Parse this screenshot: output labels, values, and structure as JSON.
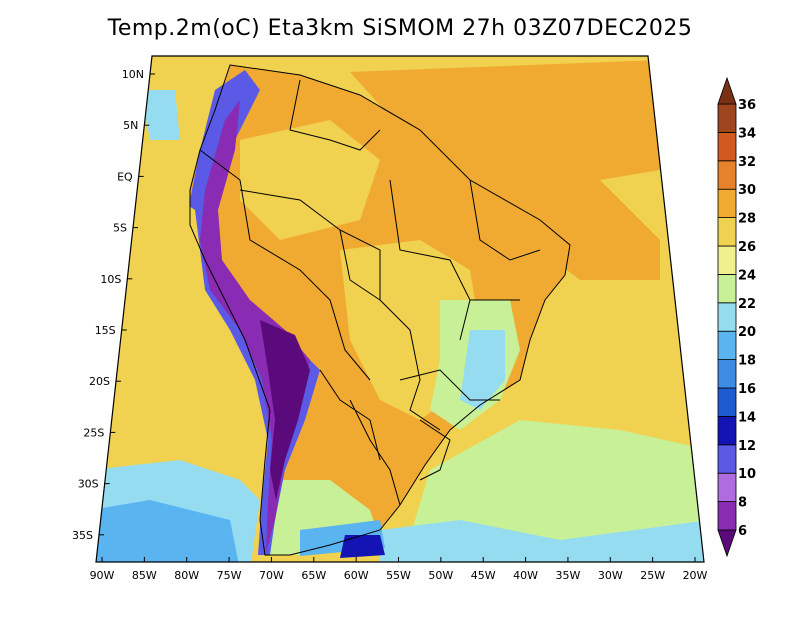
{
  "title": "Temp.2m(oC) Eta3km SiSMOM 27h 03Z07DEC2025",
  "map": {
    "lat_labels": [
      "10N",
      "5N",
      "EQ",
      "5S",
      "10S",
      "15S",
      "20S",
      "25S",
      "30S",
      "35S"
    ],
    "lon_labels": [
      "90W",
      "85W",
      "80W",
      "75W",
      "70W",
      "65W",
      "60W",
      "55W",
      "50W",
      "45W",
      "40W",
      "35W",
      "30W",
      "25W",
      "20W"
    ],
    "lon_range": [
      -90,
      -20
    ],
    "lat_range": [
      -38,
      12
    ]
  },
  "colorbar": {
    "levels": [
      "6",
      "8",
      "10",
      "12",
      "14",
      "16",
      "18",
      "20",
      "22",
      "24",
      "26",
      "28",
      "30",
      "32",
      "34",
      "36"
    ],
    "colors": [
      "#5a0a7a",
      "#8a2bb4",
      "#b06be0",
      "#5a5ae6",
      "#1414b4",
      "#1e5ad2",
      "#3c8ce6",
      "#5ab4f0",
      "#96dcf0",
      "#c8f096",
      "#f0f08c",
      "#f0d250",
      "#f0aa32",
      "#e6822a",
      "#d25a1e",
      "#a0461e",
      "#7a3014"
    ],
    "colors_note": ""
  },
  "palette": {
    "ocean_warm": "#f0aa32",
    "ocean_mild": "#f0d250",
    "ocean_cool": "#c8f096",
    "land_warm": "#f0d250",
    "land_mild": "#f0aa32",
    "andes_cold": "#5a0a7a",
    "andes_cool": "#5a5ae6",
    "south_cold": "#3c8ce6"
  }
}
